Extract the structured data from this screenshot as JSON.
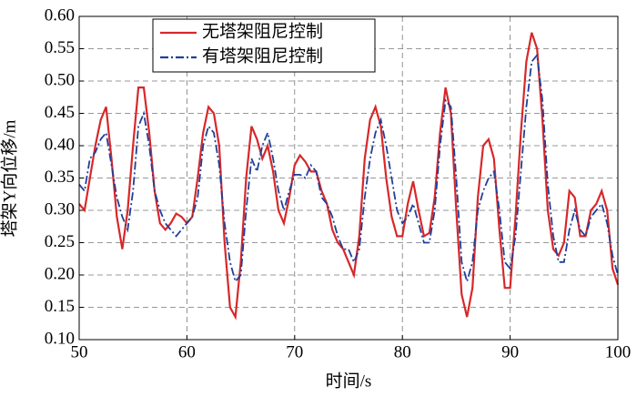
{
  "chart_data": {
    "type": "line",
    "x_label": "时间/s",
    "y_label": "塔架Y向位移/m",
    "x": [
      50,
      50.5,
      51,
      51.5,
      52,
      52.5,
      53,
      53.5,
      54,
      54.5,
      55,
      55.5,
      56,
      56.5,
      57,
      57.5,
      58,
      58.5,
      59,
      59.5,
      60,
      60.5,
      61,
      61.5,
      62,
      62.5,
      63,
      63.5,
      64,
      64.5,
      65,
      65.5,
      66,
      66.5,
      67,
      67.5,
      68,
      68.5,
      69,
      69.5,
      70,
      70.5,
      71,
      71.5,
      72,
      72.5,
      73,
      73.5,
      74,
      74.5,
      75,
      75.5,
      76,
      76.5,
      77,
      77.5,
      78,
      78.5,
      79,
      79.5,
      80,
      80.5,
      81,
      81.5,
      82,
      82.5,
      83,
      83.5,
      84,
      84.5,
      85,
      85.5,
      86,
      86.5,
      87,
      87.5,
      88,
      88.5,
      89,
      89.5,
      90,
      90.5,
      91,
      91.5,
      92,
      92.5,
      93,
      93.5,
      94,
      94.5,
      95,
      95.5,
      96,
      96.5,
      97,
      97.5,
      98,
      98.5,
      99,
      99.5,
      100
    ],
    "series": [
      {
        "name": "无塔架阻尼控制",
        "color": "#d7282a",
        "dash": "solid",
        "values": [
          0.31,
          0.3,
          0.35,
          0.4,
          0.44,
          0.46,
          0.38,
          0.29,
          0.24,
          0.3,
          0.4,
          0.49,
          0.49,
          0.42,
          0.33,
          0.28,
          0.27,
          0.28,
          0.295,
          0.29,
          0.28,
          0.29,
          0.35,
          0.42,
          0.46,
          0.45,
          0.4,
          0.25,
          0.15,
          0.135,
          0.22,
          0.35,
          0.43,
          0.41,
          0.38,
          0.4,
          0.36,
          0.3,
          0.28,
          0.32,
          0.37,
          0.385,
          0.375,
          0.36,
          0.36,
          0.33,
          0.31,
          0.27,
          0.25,
          0.24,
          0.22,
          0.2,
          0.26,
          0.38,
          0.44,
          0.46,
          0.43,
          0.35,
          0.29,
          0.26,
          0.26,
          0.31,
          0.345,
          0.3,
          0.26,
          0.265,
          0.32,
          0.42,
          0.49,
          0.45,
          0.3,
          0.17,
          0.135,
          0.18,
          0.32,
          0.4,
          0.41,
          0.38,
          0.27,
          0.18,
          0.18,
          0.29,
          0.42,
          0.53,
          0.575,
          0.55,
          0.44,
          0.3,
          0.24,
          0.23,
          0.25,
          0.33,
          0.32,
          0.26,
          0.26,
          0.3,
          0.31,
          0.33,
          0.3,
          0.21,
          0.185
        ]
      },
      {
        "name": "有塔架阻尼控制",
        "color": "#1f3f9a",
        "dash": "dashdot",
        "values": [
          0.34,
          0.33,
          0.38,
          0.39,
          0.41,
          0.42,
          0.37,
          0.32,
          0.29,
          0.27,
          0.33,
          0.43,
          0.45,
          0.4,
          0.33,
          0.3,
          0.28,
          0.27,
          0.26,
          0.27,
          0.28,
          0.29,
          0.32,
          0.4,
          0.43,
          0.42,
          0.37,
          0.28,
          0.22,
          0.19,
          0.2,
          0.3,
          0.38,
          0.36,
          0.4,
          0.42,
          0.38,
          0.33,
          0.3,
          0.33,
          0.355,
          0.355,
          0.35,
          0.37,
          0.36,
          0.32,
          0.31,
          0.29,
          0.26,
          0.24,
          0.24,
          0.22,
          0.24,
          0.32,
          0.38,
          0.42,
          0.44,
          0.4,
          0.35,
          0.3,
          0.28,
          0.29,
          0.31,
          0.28,
          0.25,
          0.25,
          0.3,
          0.4,
          0.47,
          0.46,
          0.35,
          0.22,
          0.19,
          0.22,
          0.3,
          0.33,
          0.35,
          0.36,
          0.3,
          0.22,
          0.21,
          0.26,
          0.36,
          0.46,
          0.53,
          0.54,
          0.47,
          0.34,
          0.26,
          0.22,
          0.22,
          0.27,
          0.3,
          0.27,
          0.26,
          0.29,
          0.3,
          0.31,
          0.28,
          0.23,
          0.2
        ]
      }
    ],
    "xlim": [
      50,
      100
    ],
    "xticks": [
      50,
      60,
      70,
      80,
      90,
      100
    ],
    "ylim": [
      0.1,
      0.6
    ],
    "yticks": [
      {
        "value": 0.1,
        "label": "0.10"
      },
      0.15,
      {
        "value": 0.2,
        "label": "0.20"
      },
      0.25,
      {
        "value": 0.3,
        "label": "0.30"
      },
      0.35,
      {
        "value": 0.4,
        "label": "0.40"
      },
      0.45,
      {
        "value": 0.5,
        "label": "0.50"
      },
      0.55,
      {
        "value": 0.6,
        "label": "0.60"
      }
    ],
    "grid": true,
    "legend": "upper-left"
  }
}
